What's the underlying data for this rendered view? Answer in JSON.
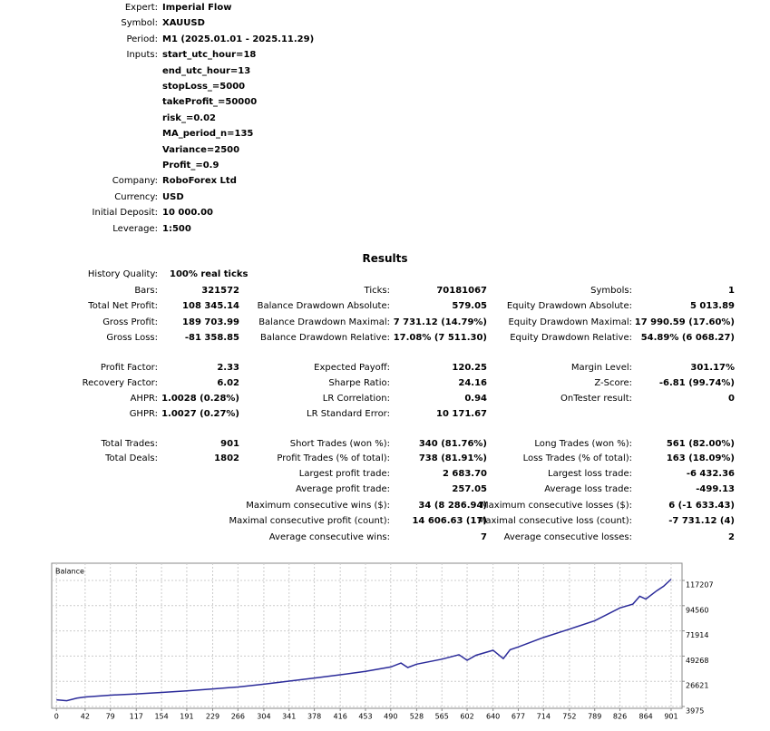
{
  "header": {
    "rows": [
      {
        "label": "Expert:",
        "values": [
          "Imperial Flow"
        ]
      },
      {
        "label": "Symbol:",
        "values": [
          "XAUUSD"
        ]
      },
      {
        "label": "Period:",
        "values": [
          "M1 (2025.01.01 - 2025.11.29)"
        ]
      },
      {
        "label": "Inputs:",
        "values": [
          "start_utc_hour=18",
          "end_utc_hour=13",
          "stopLoss_=5000",
          "takeProfit_=50000",
          "risk_=0.02",
          "MA_period_n=135",
          "Variance=2500",
          "Profit_=0.9"
        ]
      },
      {
        "label": "Company:",
        "values": [
          "RoboForex Ltd"
        ]
      },
      {
        "label": "Currency:",
        "values": [
          "USD"
        ]
      },
      {
        "label": "Initial Deposit:",
        "values": [
          "10 000.00"
        ]
      },
      {
        "label": "Leverage:",
        "values": [
          "1:500"
        ]
      }
    ]
  },
  "results": {
    "title": "Results",
    "history_quality": {
      "label": "History Quality:",
      "value": "100% real ticks"
    },
    "rows": [
      [
        {
          "label": "Bars:",
          "value": "321572"
        },
        {
          "label": "Ticks:",
          "value": "70181067"
        },
        {
          "label": "Symbols:",
          "value": "1"
        }
      ],
      [
        {
          "label": "Total Net Profit:",
          "value": "108 345.14"
        },
        {
          "label": "Balance Drawdown Absolute:",
          "value": "579.05"
        },
        {
          "label": "Equity Drawdown Absolute:",
          "value": "5 013.89"
        }
      ],
      [
        {
          "label": "Gross Profit:",
          "value": "189 703.99"
        },
        {
          "label": "Balance Drawdown Maximal:",
          "value": "7 731.12 (14.79%)"
        },
        {
          "label": "Equity Drawdown Maximal:",
          "value": "17 990.59 (17.60%)"
        }
      ],
      [
        {
          "label": "Gross Loss:",
          "value": "-81 358.85"
        },
        {
          "label": "Balance Drawdown Relative:",
          "value": "17.08% (7 511.30)"
        },
        {
          "label": "Equity Drawdown Relative:",
          "value": "54.89% (6 068.27)"
        }
      ],
      [
        {
          "label": "Profit Factor:",
          "value": "2.33"
        },
        {
          "label": "Expected Payoff:",
          "value": "120.25"
        },
        {
          "label": "Margin Level:",
          "value": "301.17%"
        }
      ],
      [
        {
          "label": "Recovery Factor:",
          "value": "6.02"
        },
        {
          "label": "Sharpe Ratio:",
          "value": "24.16"
        },
        {
          "label": "Z-Score:",
          "value": "-6.81 (99.74%)"
        }
      ],
      [
        {
          "label": "AHPR:",
          "value": "1.0028 (0.28%)"
        },
        {
          "label": "LR Correlation:",
          "value": "0.94"
        },
        {
          "label": "OnTester result:",
          "value": "0"
        }
      ],
      [
        {
          "label": "GHPR:",
          "value": "1.0027 (0.27%)"
        },
        {
          "label": "LR Standard Error:",
          "value": "10 171.67"
        },
        null
      ],
      [
        {
          "label": "Total Trades:",
          "value": "901"
        },
        {
          "label": "Short Trades (won %):",
          "value": "340 (81.76%)"
        },
        {
          "label": "Long Trades (won %):",
          "value": "561 (82.00%)"
        }
      ],
      [
        {
          "label": "Total Deals:",
          "value": "1802"
        },
        {
          "label": "Profit Trades (% of total):",
          "value": "738 (81.91%)"
        },
        {
          "label": "Loss Trades (% of total):",
          "value": "163 (18.09%)"
        }
      ],
      [
        null,
        {
          "label": "Largest profit trade:",
          "value": "2 683.70"
        },
        {
          "label": "Largest loss trade:",
          "value": "-6 432.36"
        }
      ],
      [
        null,
        {
          "label": "Average profit trade:",
          "value": "257.05"
        },
        {
          "label": "Average loss trade:",
          "value": "-499.13"
        }
      ],
      [
        null,
        {
          "label": "Maximum consecutive wins ($):",
          "value": "34 (8 286.94)"
        },
        {
          "label": "Maximum consecutive losses ($):",
          "value": "6 (-1 633.43)"
        }
      ],
      [
        null,
        {
          "label": "Maximal consecutive profit (count):",
          "value": "14 606.63 (17)"
        },
        {
          "label": "Maximal consecutive loss (count):",
          "value": "-7 731.12 (4)"
        }
      ],
      [
        null,
        {
          "label": "Average consecutive wins:",
          "value": "7"
        },
        {
          "label": "Average consecutive losses:",
          "value": "2"
        }
      ]
    ]
  },
  "chart_data": {
    "type": "line",
    "title": "Balance",
    "x": [
      0,
      15,
      30,
      42,
      79,
      117,
      154,
      191,
      229,
      266,
      304,
      341,
      378,
      416,
      453,
      490,
      505,
      515,
      528,
      565,
      590,
      602,
      615,
      640,
      655,
      665,
      677,
      714,
      752,
      789,
      826,
      845,
      855,
      864,
      880,
      890,
      901
    ],
    "series": [
      {
        "name": "Balance",
        "color": "#2b2b9a",
        "values": [
          10000,
          9200,
          11500,
          12500,
          14200,
          15300,
          16600,
          18000,
          19800,
          21500,
          24000,
          26800,
          29500,
          32500,
          35500,
          39500,
          43000,
          39000,
          42000,
          46500,
          50500,
          45500,
          50000,
          54500,
          47000,
          55000,
          57500,
          66000,
          73500,
          81000,
          92500,
          96000,
          103000,
          100500,
          108000,
          112000,
          118345
        ]
      }
    ],
    "xlim": [
      -7,
      917
    ],
    "ylim": [
      2345,
      132690
    ],
    "xticks": [
      0,
      42,
      79,
      117,
      154,
      191,
      229,
      266,
      304,
      341,
      378,
      416,
      453,
      490,
      528,
      565,
      602,
      640,
      677,
      714,
      752,
      789,
      826,
      864,
      901
    ],
    "yticks": [
      3975,
      26621,
      49268,
      71914,
      94560,
      117207
    ],
    "grid": true
  }
}
